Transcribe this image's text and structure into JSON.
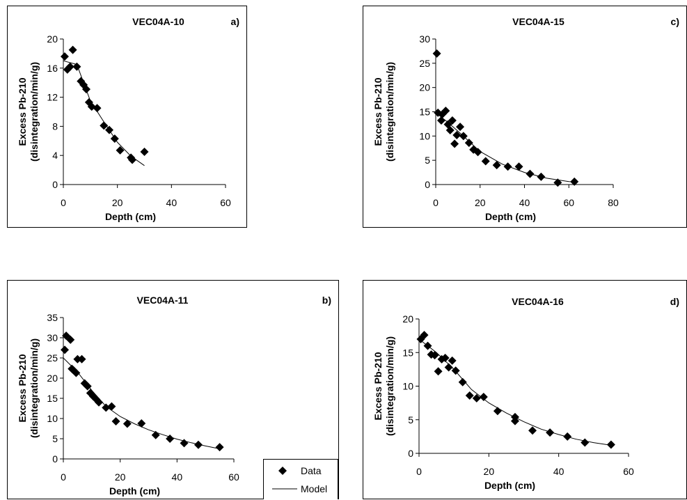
{
  "legend": {
    "data_label": "Data",
    "model_label": "Model",
    "colors": {
      "marker": "#000000",
      "line": "#000000"
    }
  },
  "chart_data": [
    {
      "id": "a",
      "type": "scatter",
      "title": "VEC04A-10",
      "panel_label": "a)",
      "xlabel": "Depth (cm)",
      "ylabel_line1": "Excess Pb-210",
      "ylabel_line2": "(disintegration/min/g)",
      "xlim": [
        0,
        60
      ],
      "xticks": [
        0,
        20,
        40,
        60
      ],
      "ylim": [
        0,
        20
      ],
      "yticks": [
        0,
        4,
        8,
        12,
        16,
        20
      ],
      "series": [
        {
          "name": "Data",
          "marker": "diamond",
          "x": [
            0.5,
            1.5,
            2.5,
            3.5,
            5,
            6.5,
            7.5,
            8.5,
            9.5,
            10.5,
            12.5,
            15,
            17,
            19,
            21,
            25,
            25.5,
            30
          ],
          "y": [
            17.6,
            15.8,
            16.2,
            18.5,
            16.2,
            14.2,
            13.7,
            13.1,
            11.3,
            10.7,
            10.5,
            8.1,
            7.5,
            6.3,
            4.7,
            3.7,
            3.4,
            4.5
          ]
        },
        {
          "name": "Model",
          "line": true,
          "x": [
            0,
            5,
            10,
            15,
            20,
            25,
            30
          ],
          "y": [
            17.0,
            16.5,
            11.5,
            8.6,
            5.8,
            3.9,
            2.6
          ]
        }
      ]
    },
    {
      "id": "c",
      "type": "scatter",
      "title": "VEC04A-15",
      "panel_label": "c)",
      "xlabel": "Depth (cm)",
      "ylabel_line1": "Excess Pb-210",
      "ylabel_line2": "(disintegration/min/g)",
      "xlim": [
        0,
        80
      ],
      "xticks": [
        0,
        20,
        40,
        60,
        80
      ],
      "ylim": [
        0,
        30
      ],
      "yticks": [
        0,
        5,
        10,
        15,
        20,
        25,
        30
      ],
      "series": [
        {
          "name": "Data",
          "marker": "diamond",
          "x": [
            0.5,
            1,
            2.5,
            3,
            4.5,
            5.5,
            6.5,
            7.5,
            8.5,
            9.5,
            11,
            12.5,
            15,
            17,
            19,
            22.5,
            27.5,
            32.5,
            37.5,
            42.5,
            47.5,
            55,
            62.5
          ],
          "y": [
            27,
            14.8,
            13.2,
            14.5,
            15.2,
            12.4,
            11.2,
            13.2,
            8.4,
            10.2,
            11.9,
            10.0,
            8.6,
            7.2,
            6.7,
            4.8,
            4.0,
            3.7,
            3.7,
            2.2,
            1.6,
            0.4,
            0.6
          ]
        },
        {
          "name": "Model",
          "line": true,
          "x": [
            0,
            5,
            10,
            20,
            30,
            40,
            50,
            60,
            63
          ],
          "y": [
            14.8,
            13.0,
            11.0,
            6.8,
            4.2,
            2.5,
            1.3,
            0.6,
            0.5
          ]
        }
      ]
    },
    {
      "id": "b",
      "type": "scatter",
      "title": "VEC04A-11",
      "panel_label": "b)",
      "xlabel": "Depth (cm)",
      "ylabel_line1": "Excess Pb-210",
      "ylabel_line2": "(disintegration/min/g)",
      "xlim": [
        0,
        60
      ],
      "xticks": [
        0,
        20,
        40,
        60
      ],
      "ylim": [
        0,
        35
      ],
      "yticks": [
        0,
        5,
        10,
        15,
        20,
        25,
        30,
        35
      ],
      "series": [
        {
          "name": "Data",
          "marker": "diamond",
          "x": [
            0.5,
            1,
            2.5,
            3,
            3.5,
            4.5,
            5,
            6.5,
            7.5,
            8.5,
            9.5,
            10.5,
            11.5,
            12.5,
            15,
            17,
            18.5,
            22.5,
            27.5,
            32.5,
            37.5,
            42.5,
            47.5,
            55
          ],
          "y": [
            27,
            30.5,
            29.5,
            22.3,
            22.0,
            21.3,
            24.7,
            24.7,
            18.7,
            18.0,
            16.3,
            15.5,
            14.8,
            14.0,
            12.7,
            13.0,
            9.3,
            8.7,
            8.8,
            5.9,
            5.0,
            3.9,
            3.5,
            2.9
          ]
        },
        {
          "name": "Model",
          "line": true,
          "x": [
            0,
            5,
            10,
            15,
            20,
            25,
            30,
            35,
            40,
            45,
            50,
            55
          ],
          "y": [
            25.0,
            21.5,
            17.0,
            13.0,
            10.5,
            8.7,
            7.2,
            6.0,
            4.9,
            4.0,
            3.2,
            2.5
          ]
        }
      ]
    },
    {
      "id": "d",
      "type": "scatter",
      "title": "VEC04A-16",
      "panel_label": "d)",
      "xlabel": "Depth (cm)",
      "ylabel_line1": "Excess Pb-210",
      "ylabel_line2": "(disintegration/min/g)",
      "xlim": [
        0,
        60
      ],
      "xticks": [
        0,
        20,
        40,
        60
      ],
      "ylim": [
        0,
        20
      ],
      "yticks": [
        0,
        5,
        10,
        15,
        20
      ],
      "series": [
        {
          "name": "Data",
          "marker": "diamond",
          "x": [
            0.5,
            1.5,
            2.5,
            3.5,
            4.5,
            5.5,
            6.5,
            7.5,
            8.5,
            9.5,
            10.5,
            12.5,
            14.5,
            16.5,
            18.5,
            22.5,
            27.5,
            27.5,
            32.5,
            37.5,
            42.5,
            47.5,
            55
          ],
          "y": [
            17.0,
            17.6,
            16.0,
            14.7,
            14.6,
            12.2,
            14.0,
            14.2,
            12.8,
            13.8,
            12.3,
            10.6,
            8.6,
            8.2,
            8.4,
            6.3,
            5.4,
            4.8,
            3.4,
            3.1,
            2.5,
            1.6,
            1.3
          ]
        },
        {
          "name": "Model",
          "line": true,
          "x": [
            0,
            5,
            10,
            15,
            20,
            25,
            30,
            35,
            40,
            45,
            50,
            55
          ],
          "y": [
            17.0,
            15.0,
            12.5,
            9.5,
            7.5,
            6.0,
            4.7,
            3.6,
            2.8,
            2.1,
            1.6,
            1.2
          ]
        }
      ]
    }
  ]
}
